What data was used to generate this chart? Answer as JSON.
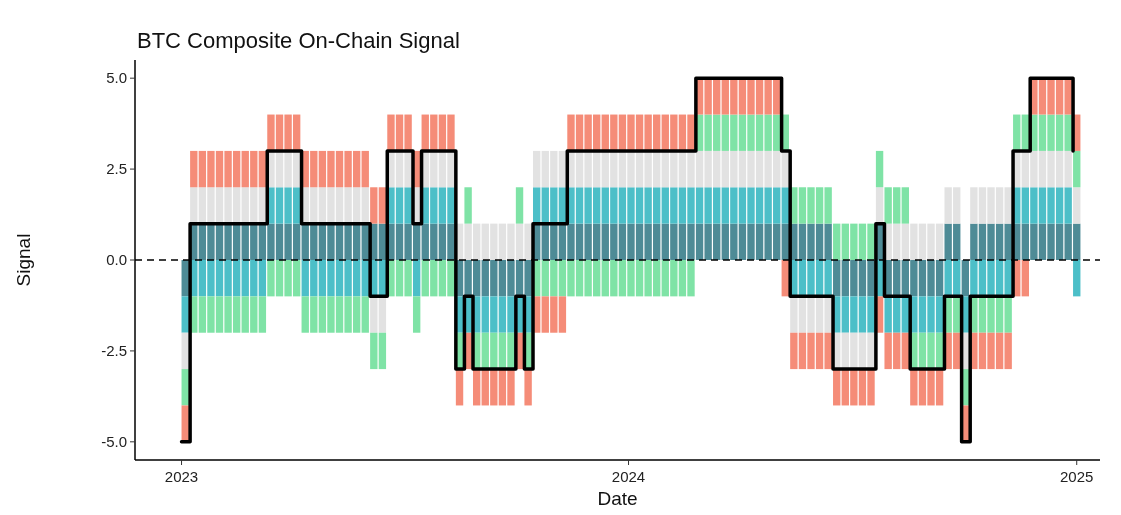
{
  "chart_data": {
    "type": "bar",
    "stacked": true,
    "title": "BTC Composite On-Chain Signal",
    "xlabel": "Date",
    "ylabel": "Signal",
    "x": [
      "2023-01-01",
      "2023-01-08",
      "2023-01-15",
      "2023-01-22",
      "2023-01-29",
      "2023-02-05",
      "2023-02-12",
      "2023-02-19",
      "2023-02-26",
      "2023-03-05",
      "2023-03-12",
      "2023-03-19",
      "2023-03-26",
      "2023-04-02",
      "2023-04-09",
      "2023-04-16",
      "2023-04-23",
      "2023-04-30",
      "2023-05-07",
      "2023-05-14",
      "2023-05-21",
      "2023-05-28",
      "2023-06-04",
      "2023-06-11",
      "2023-06-18",
      "2023-06-25",
      "2023-07-02",
      "2023-07-09",
      "2023-07-16",
      "2023-07-23",
      "2023-07-30",
      "2023-08-06",
      "2023-08-13",
      "2023-08-20",
      "2023-08-27",
      "2023-09-03",
      "2023-09-10",
      "2023-09-17",
      "2023-09-24",
      "2023-10-01",
      "2023-10-08",
      "2023-10-15",
      "2023-10-22",
      "2023-10-29",
      "2023-11-05",
      "2023-11-12",
      "2023-11-19",
      "2023-11-26",
      "2023-12-03",
      "2023-12-10",
      "2023-12-17",
      "2023-12-24",
      "2023-12-31",
      "2024-01-07",
      "2024-01-14",
      "2024-01-21",
      "2024-01-28",
      "2024-02-04",
      "2024-02-11",
      "2024-02-18",
      "2024-02-25",
      "2024-03-03",
      "2024-03-10",
      "2024-03-17",
      "2024-03-24",
      "2024-03-31",
      "2024-04-07",
      "2024-04-14",
      "2024-04-21",
      "2024-04-28",
      "2024-05-05",
      "2024-05-12",
      "2024-05-19",
      "2024-05-26",
      "2024-06-02",
      "2024-06-09",
      "2024-06-16",
      "2024-06-23",
      "2024-06-30",
      "2024-07-07",
      "2024-07-14",
      "2024-07-21",
      "2024-07-28",
      "2024-08-04",
      "2024-08-11",
      "2024-08-18",
      "2024-08-25",
      "2024-09-01",
      "2024-09-08",
      "2024-09-15",
      "2024-09-22",
      "2024-09-29",
      "2024-10-06",
      "2024-10-13",
      "2024-10-20",
      "2024-10-27",
      "2024-11-03",
      "2024-11-10",
      "2024-11-17",
      "2024-11-24",
      "2024-12-01",
      "2024-12-08",
      "2024-12-15",
      "2024-12-22",
      "2024-12-29"
    ],
    "series": [
      {
        "color": "#4e8b96",
        "values": [
          -1,
          1,
          1,
          1,
          1,
          1,
          1,
          1,
          1,
          1,
          1,
          1,
          1,
          1,
          1,
          1,
          1,
          1,
          1,
          1,
          1,
          1,
          1,
          1,
          1,
          1,
          1,
          1,
          1,
          1,
          1,
          1,
          -1,
          -1,
          -1,
          -1,
          -1,
          -1,
          -1,
          -1,
          -1,
          1,
          1,
          1,
          1,
          1,
          1,
          1,
          1,
          1,
          1,
          1,
          1,
          1,
          1,
          1,
          1,
          1,
          1,
          1,
          1,
          1,
          1,
          1,
          1,
          1,
          1,
          1,
          1,
          1,
          1,
          1,
          1,
          1,
          1,
          1,
          -1,
          -1,
          -1,
          -1,
          -1,
          1,
          -1,
          -1,
          -1,
          -1,
          -1,
          -1,
          -1,
          1,
          1,
          -1,
          1,
          1,
          1,
          1,
          1,
          1,
          1,
          1,
          1,
          1,
          1,
          1,
          1
        ]
      },
      {
        "color": "#4cbfc8",
        "values": [
          -1,
          -1,
          -1,
          -1,
          -1,
          -1,
          -1,
          -1,
          -1,
          -1,
          1,
          1,
          1,
          1,
          -1,
          -1,
          -1,
          -1,
          -1,
          -1,
          -1,
          -1,
          -1,
          -1,
          1,
          1,
          1,
          -1,
          1,
          1,
          1,
          1,
          -1,
          -1,
          -1,
          -1,
          -1,
          -1,
          -1,
          -1,
          -1,
          1,
          1,
          1,
          1,
          1,
          1,
          1,
          1,
          1,
          1,
          1,
          1,
          1,
          1,
          1,
          1,
          1,
          1,
          1,
          1,
          1,
          1,
          1,
          1,
          1,
          1,
          1,
          1,
          1,
          1,
          -1,
          -1,
          -1,
          -1,
          -1,
          -1,
          -1,
          -1,
          -1,
          -1,
          -1,
          -1,
          -1,
          -1,
          -1,
          -1,
          -1,
          -1,
          -1,
          -1,
          -1,
          -1,
          -1,
          -1,
          -1,
          -1,
          1,
          1,
          1,
          1,
          1,
          1,
          1,
          -1
        ]
      },
      {
        "color": "#e2e2e2",
        "values": [
          -1,
          1,
          1,
          1,
          1,
          1,
          1,
          1,
          1,
          1,
          1,
          1,
          1,
          1,
          1,
          1,
          1,
          1,
          1,
          1,
          1,
          1,
          -1,
          -1,
          1,
          1,
          1,
          1,
          1,
          1,
          1,
          1,
          1,
          1,
          1,
          1,
          1,
          1,
          1,
          1,
          1,
          1,
          1,
          1,
          1,
          1,
          1,
          1,
          1,
          1,
          1,
          1,
          1,
          1,
          1,
          1,
          1,
          1,
          1,
          1,
          1,
          1,
          1,
          1,
          1,
          1,
          1,
          1,
          1,
          1,
          1,
          -1,
          -1,
          -1,
          -1,
          -1,
          -1,
          -1,
          -1,
          -1,
          -1,
          1,
          1,
          1,
          1,
          1,
          1,
          1,
          1,
          1,
          1,
          -1,
          1,
          1,
          1,
          1,
          1,
          1,
          1,
          1,
          1,
          1,
          1,
          1,
          1
        ]
      },
      {
        "color": "#7fe3a6",
        "values": [
          -1,
          -1,
          -1,
          -1,
          -1,
          -1,
          -1,
          -1,
          -1,
          -1,
          -1,
          -1,
          -1,
          -1,
          -1,
          -1,
          -1,
          -1,
          -1,
          -1,
          -1,
          -1,
          -1,
          -1,
          -1,
          -1,
          -1,
          -1,
          -1,
          -1,
          -1,
          -1,
          -1,
          1,
          -1,
          -1,
          -1,
          -1,
          -1,
          1,
          -1,
          -1,
          -1,
          -1,
          -1,
          -1,
          -1,
          -1,
          -1,
          -1,
          -1,
          -1,
          -1,
          -1,
          -1,
          -1,
          -1,
          -1,
          -1,
          -1,
          1,
          1,
          1,
          1,
          1,
          1,
          1,
          1,
          1,
          1,
          1,
          1,
          1,
          1,
          1,
          1,
          1,
          1,
          1,
          1,
          1,
          1,
          1,
          1,
          1,
          -1,
          -1,
          -1,
          -1,
          -1,
          -1,
          -1,
          -1,
          -1,
          -1,
          -1,
          -1,
          1,
          1,
          1,
          1,
          1,
          1,
          1,
          1
        ]
      },
      {
        "color": "#f58c78",
        "values": [
          -1,
          1,
          1,
          1,
          1,
          1,
          1,
          1,
          1,
          1,
          1,
          1,
          1,
          1,
          1,
          1,
          1,
          1,
          1,
          1,
          1,
          1,
          1,
          1,
          1,
          1,
          1,
          1,
          1,
          1,
          1,
          1,
          -1,
          -1,
          -1,
          -1,
          -1,
          -1,
          -1,
          -1,
          -1,
          -1,
          -1,
          -1,
          -1,
          1,
          1,
          1,
          1,
          1,
          1,
          1,
          1,
          1,
          1,
          1,
          1,
          1,
          1,
          1,
          1,
          1,
          1,
          1,
          1,
          1,
          1,
          1,
          1,
          1,
          -1,
          -1,
          -1,
          -1,
          -1,
          -1,
          -1,
          -1,
          -1,
          -1,
          -1,
          -1,
          -1,
          -1,
          -1,
          -1,
          -1,
          -1,
          -1,
          -1,
          -1,
          -1,
          -1,
          -1,
          -1,
          -1,
          -1,
          -1,
          -1,
          1,
          1,
          1,
          1,
          1,
          1
        ]
      },
      {
        "type": "step",
        "color": "#000000",
        "values": [
          -5,
          1,
          1,
          1,
          1,
          1,
          1,
          1,
          1,
          1,
          3,
          3,
          3,
          3,
          1,
          1,
          1,
          1,
          1,
          1,
          1,
          1,
          -1,
          -1,
          3,
          3,
          3,
          1,
          3,
          3,
          3,
          3,
          -3,
          -1,
          -3,
          -3,
          -3,
          -3,
          -3,
          -1,
          -3,
          1,
          1,
          1,
          1,
          3,
          3,
          3,
          3,
          3,
          3,
          3,
          3,
          3,
          3,
          3,
          3,
          3,
          3,
          3,
          5,
          5,
          5,
          5,
          5,
          5,
          5,
          5,
          5,
          5,
          3,
          -1,
          -1,
          -1,
          -1,
          -1,
          -3,
          -3,
          -3,
          -3,
          -3,
          1,
          -1,
          -1,
          -1,
          -3,
          -3,
          -3,
          -3,
          -1,
          -1,
          -5,
          -1,
          -1,
          -1,
          -1,
          -1,
          3,
          3,
          5,
          5,
          5,
          5,
          5,
          3
        ]
      }
    ],
    "xlim": [
      "2022-11-24",
      "2025-01-20"
    ],
    "xticks": [
      "2023",
      "2024",
      "2025"
    ],
    "ylim": [
      -5.5,
      5.5
    ],
    "yticks": [
      {
        "value": -5,
        "label": "-5.0"
      },
      {
        "value": -2.5,
        "label": "-2.5"
      },
      {
        "value": 0,
        "label": "0.0"
      },
      {
        "value": 2.5,
        "label": "2.5"
      },
      {
        "value": 5,
        "label": "5.0"
      }
    ],
    "ref_lines": [
      {
        "axis": "y",
        "value": 0,
        "color": "#000000",
        "line_style": "dashed"
      }
    ]
  }
}
